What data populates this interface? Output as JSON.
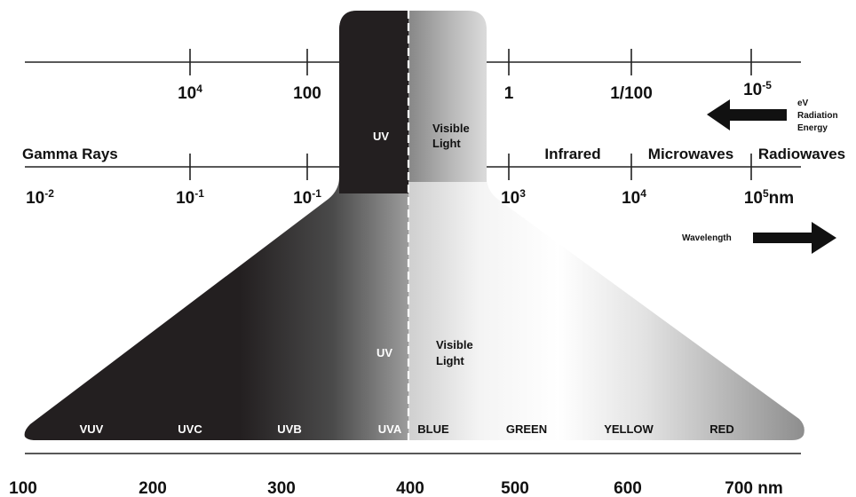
{
  "energy_ticks": [
    {
      "base": "10",
      "sup": "4"
    },
    {
      "base": "100",
      "sup": ""
    },
    {
      "base": "1",
      "sup": ""
    },
    {
      "base": "1/100",
      "sup": ""
    },
    {
      "base": "10",
      "sup": "-5"
    }
  ],
  "wavelength_ticks": [
    {
      "base": "10",
      "sup": "-2",
      "suffix": ""
    },
    {
      "base": "10",
      "sup": "-1",
      "suffix": ""
    },
    {
      "base": "10",
      "sup": "-1",
      "suffix": ""
    },
    {
      "base": "10",
      "sup": "3",
      "suffix": ""
    },
    {
      "base": "10",
      "sup": "4",
      "suffix": ""
    },
    {
      "base": "10",
      "sup": "5",
      "suffix": "nm"
    }
  ],
  "regions": {
    "gamma": "Gamma Rays",
    "infrared": "Infrared",
    "microwaves": "Microwaves",
    "radiowaves": "Radiowaves"
  },
  "energy_arrow": {
    "line1": "eV",
    "line2": "Radiation",
    "line3": "Energy"
  },
  "wavelength_arrow": "Wavelength",
  "column": {
    "uv": "UV",
    "visible_line1": "Visible",
    "visible_line2": "Light"
  },
  "funnel": {
    "uv": "UV",
    "visible_line1": "Visible",
    "visible_line2": "Light",
    "bands": [
      "VUV",
      "UVC",
      "UVB",
      "UVA",
      "BLUE",
      "GREEN",
      "YELLOW",
      "RED"
    ]
  },
  "bottom_scale": [
    "100",
    "200",
    "300",
    "400",
    "500",
    "600",
    "700 nm"
  ],
  "colors": {
    "dark": "#231f20",
    "light": "#ffffff",
    "grey": "#9a9a9a",
    "line": "#222222"
  }
}
